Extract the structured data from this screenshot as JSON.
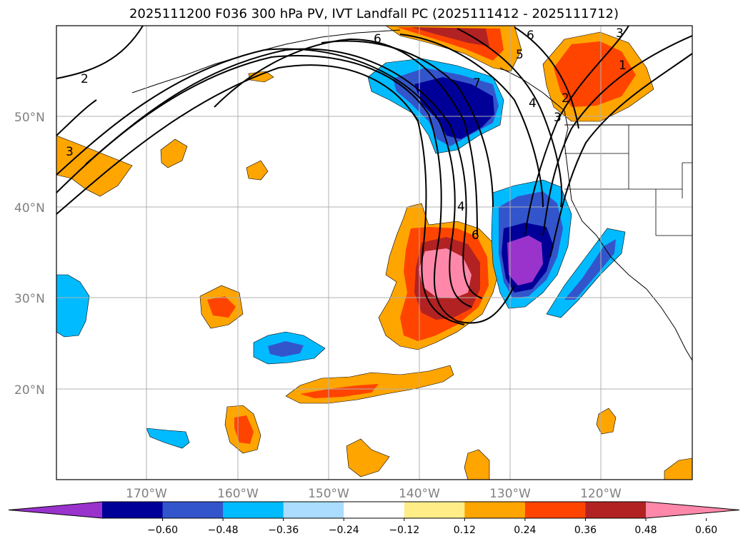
{
  "title": "2025111200 F036 300 hPa PV, IVT Landfall PC (2025111412 - 2025111712)",
  "latitude_labels": [
    "50°N",
    "40°N",
    "30°N",
    "20°N"
  ],
  "longitude_labels": [
    "170°W",
    "160°W",
    "150°W",
    "140°W",
    "130°W",
    "120°W"
  ],
  "colorbar": {
    "tick_labels": [
      "−0.60",
      "−0.48",
      "−0.36",
      "−0.24",
      "−0.12",
      "0.12",
      "0.24",
      "0.36",
      "0.48",
      "0.60"
    ],
    "colors": [
      "#9933cc",
      "#000099",
      "#3355cc",
      "#00bbff",
      "#aaddff",
      "#ffffff",
      "#ffee88",
      "#ffa500",
      "#ff4400",
      "#b22222",
      "#ff88aa"
    ]
  },
  "contour_labels": [
    "2",
    "3",
    "6",
    "6",
    "5",
    "3",
    "1",
    "2",
    "4",
    "6",
    "7",
    "4",
    "3"
  ]
}
